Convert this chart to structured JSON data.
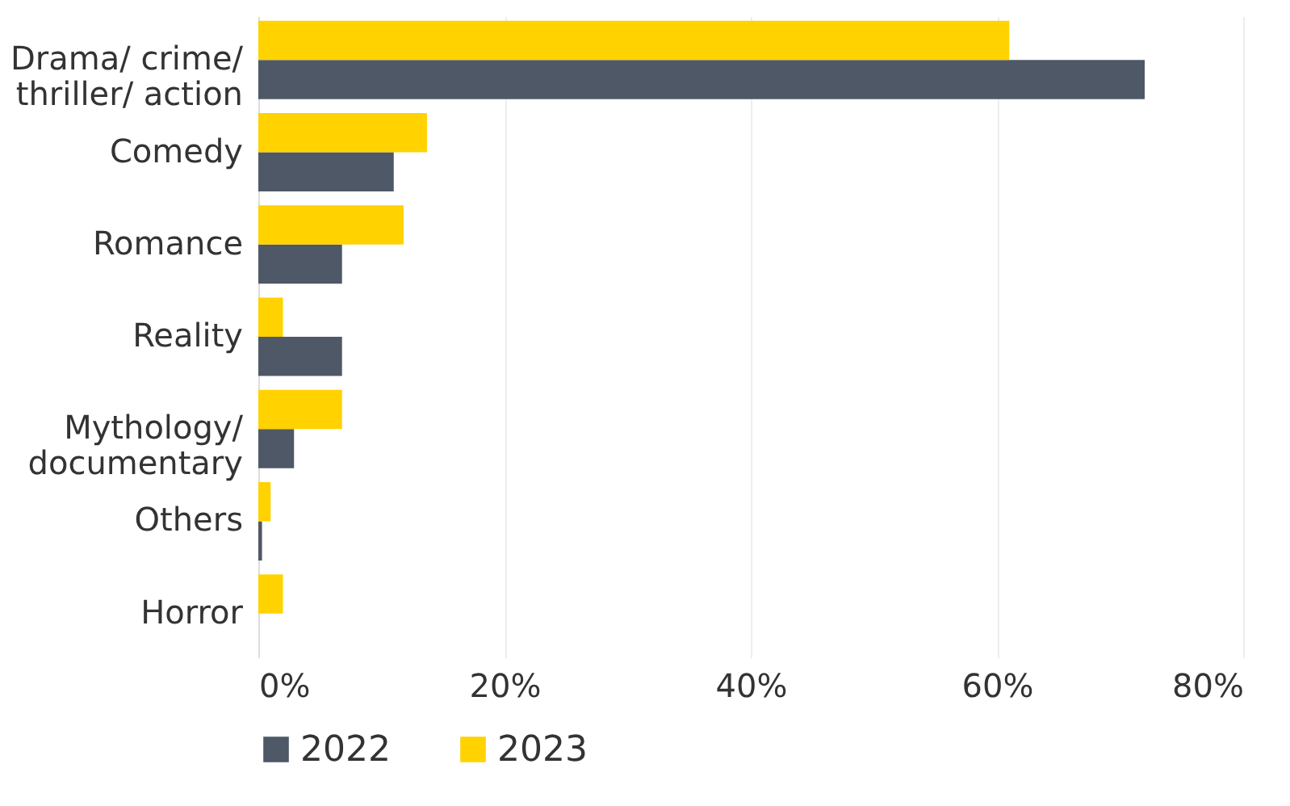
{
  "chart_data": {
    "type": "bar",
    "orientation": "horizontal",
    "categories": [
      "Drama/ crime/ thriller/ action",
      "Comedy",
      "Romance",
      "Reality",
      "Mythology/ documentary",
      "Others",
      "Horror"
    ],
    "series": [
      {
        "name": "2022",
        "color": "#4e5866",
        "values": [
          72,
          11,
          6.8,
          6.8,
          2.9,
          0.3,
          0
        ]
      },
      {
        "name": "2023",
        "color": "#ffd200",
        "values": [
          61,
          13.7,
          11.8,
          2,
          6.8,
          1,
          2
        ]
      }
    ],
    "xlim": [
      0,
      80
    ],
    "xticks": [
      {
        "value": 0,
        "label": "0%"
      },
      {
        "value": 20,
        "label": "20%"
      },
      {
        "value": 40,
        "label": "40%"
      },
      {
        "value": 60,
        "label": "60%"
      },
      {
        "value": 80,
        "label": "80%"
      }
    ],
    "grid": "x",
    "legend": "bottom"
  }
}
